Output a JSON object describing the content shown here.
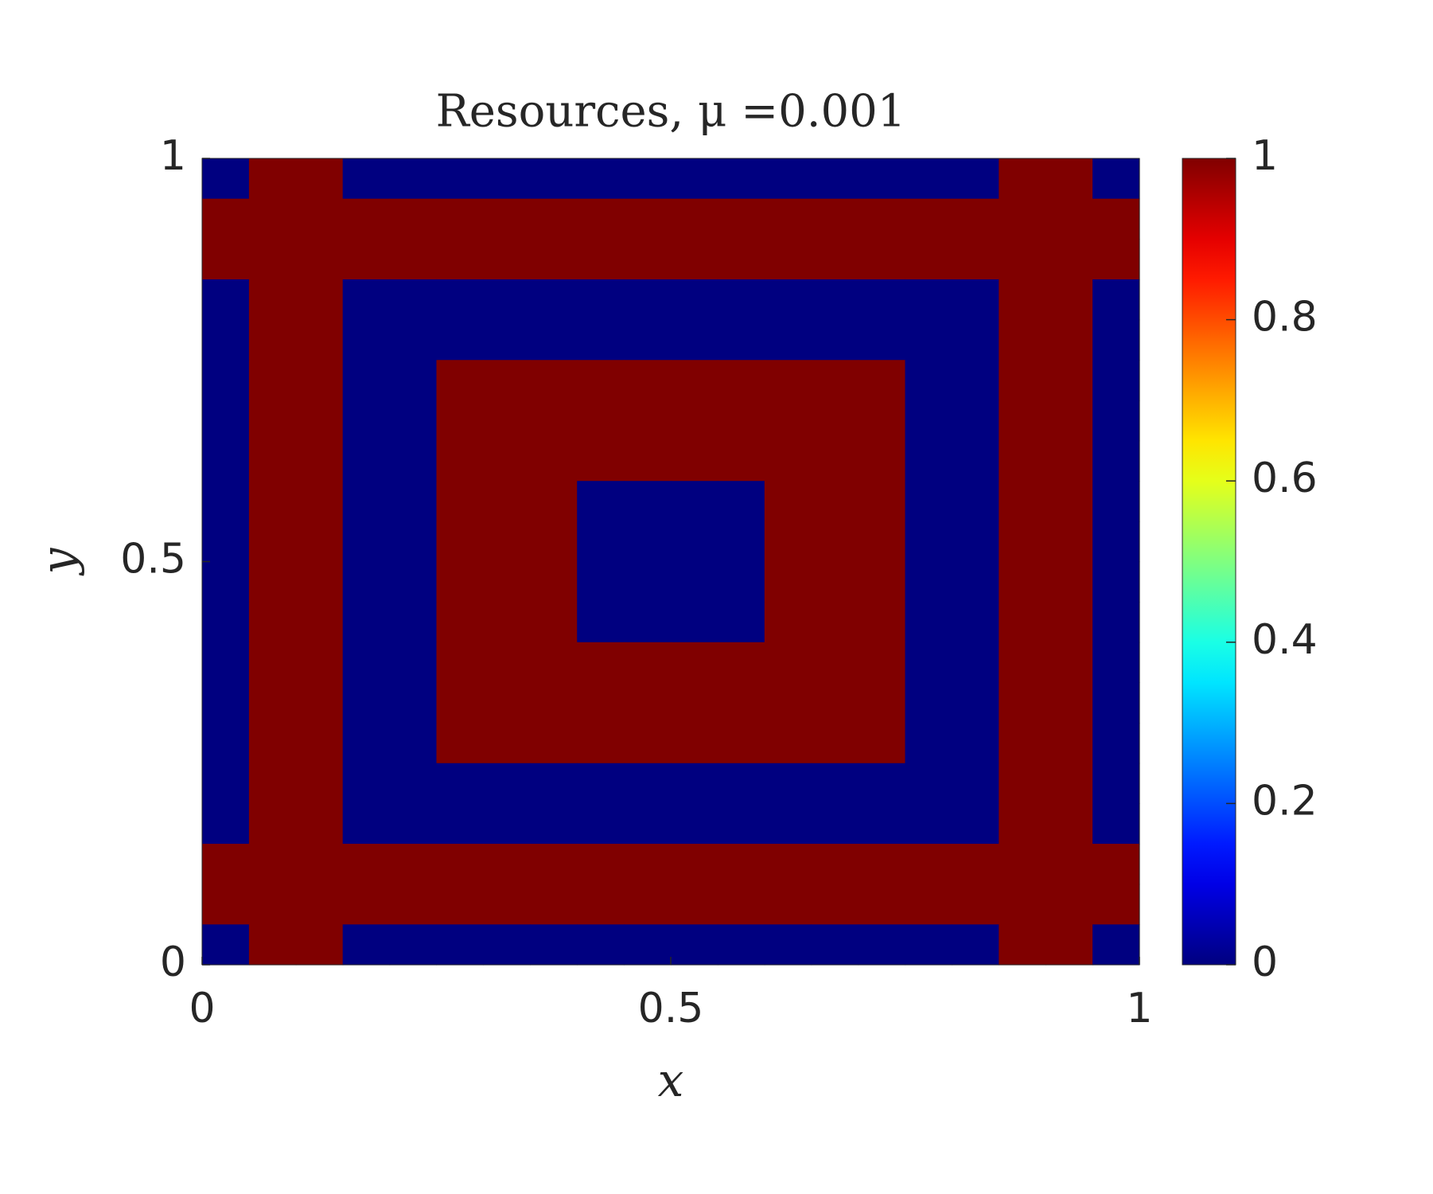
{
  "chart_data": {
    "type": "heatmap",
    "title": "Resources, μ =0.001",
    "x_label": "x",
    "y_label": "y",
    "xlim": [
      0,
      1
    ],
    "ylim": [
      0,
      1
    ],
    "xticks": [
      0,
      0.5,
      1
    ],
    "yticks": [
      0,
      0.5,
      1
    ],
    "colormap": "jet",
    "clim": [
      0,
      1
    ],
    "colorbar_ticks": [
      0,
      0.2,
      0.4,
      0.6,
      0.8,
      1
    ],
    "z": [
      [
        0,
        1,
        1,
        0,
        0,
        0,
        0,
        0,
        0,
        0,
        0,
        0,
        0,
        0,
        0,
        0,
        0,
        1,
        1,
        0
      ],
      [
        1,
        1,
        1,
        1,
        1,
        1,
        1,
        1,
        1,
        1,
        1,
        1,
        1,
        1,
        1,
        1,
        1,
        1,
        1,
        1
      ],
      [
        1,
        1,
        1,
        1,
        1,
        1,
        1,
        1,
        1,
        1,
        1,
        1,
        1,
        1,
        1,
        1,
        1,
        1,
        1,
        1
      ],
      [
        0,
        1,
        1,
        0,
        0,
        0,
        0,
        0,
        0,
        0,
        0,
        0,
        0,
        0,
        0,
        0,
        0,
        1,
        1,
        0
      ],
      [
        0,
        1,
        1,
        0,
        0,
        0,
        0,
        0,
        0,
        0,
        0,
        0,
        0,
        0,
        0,
        0,
        0,
        1,
        1,
        0
      ],
      [
        0,
        1,
        1,
        0,
        0,
        1,
        1,
        1,
        1,
        1,
        1,
        1,
        1,
        1,
        1,
        0,
        0,
        1,
        1,
        0
      ],
      [
        0,
        1,
        1,
        0,
        0,
        1,
        1,
        1,
        1,
        1,
        1,
        1,
        1,
        1,
        1,
        0,
        0,
        1,
        1,
        0
      ],
      [
        0,
        1,
        1,
        0,
        0,
        1,
        1,
        1,
        1,
        1,
        1,
        1,
        1,
        1,
        1,
        0,
        0,
        1,
        1,
        0
      ],
      [
        0,
        1,
        1,
        0,
        0,
        1,
        1,
        1,
        0,
        0,
        0,
        0,
        1,
        1,
        1,
        0,
        0,
        1,
        1,
        0
      ],
      [
        0,
        1,
        1,
        0,
        0,
        1,
        1,
        1,
        0,
        0,
        0,
        0,
        1,
        1,
        1,
        0,
        0,
        1,
        1,
        0
      ],
      [
        0,
        1,
        1,
        0,
        0,
        1,
        1,
        1,
        0,
        0,
        0,
        0,
        1,
        1,
        1,
        0,
        0,
        1,
        1,
        0
      ],
      [
        0,
        1,
        1,
        0,
        0,
        1,
        1,
        1,
        0,
        0,
        0,
        0,
        1,
        1,
        1,
        0,
        0,
        1,
        1,
        0
      ],
      [
        0,
        1,
        1,
        0,
        0,
        1,
        1,
        1,
        1,
        1,
        1,
        1,
        1,
        1,
        1,
        0,
        0,
        1,
        1,
        0
      ],
      [
        0,
        1,
        1,
        0,
        0,
        1,
        1,
        1,
        1,
        1,
        1,
        1,
        1,
        1,
        1,
        0,
        0,
        1,
        1,
        0
      ],
      [
        0,
        1,
        1,
        0,
        0,
        1,
        1,
        1,
        1,
        1,
        1,
        1,
        1,
        1,
        1,
        0,
        0,
        1,
        1,
        0
      ],
      [
        0,
        1,
        1,
        0,
        0,
        0,
        0,
        0,
        0,
        0,
        0,
        0,
        0,
        0,
        0,
        0,
        0,
        1,
        1,
        0
      ],
      [
        0,
        1,
        1,
        0,
        0,
        0,
        0,
        0,
        0,
        0,
        0,
        0,
        0,
        0,
        0,
        0,
        0,
        1,
        1,
        0
      ],
      [
        1,
        1,
        1,
        1,
        1,
        1,
        1,
        1,
        1,
        1,
        1,
        1,
        1,
        1,
        1,
        1,
        1,
        1,
        1,
        1
      ],
      [
        1,
        1,
        1,
        1,
        1,
        1,
        1,
        1,
        1,
        1,
        1,
        1,
        1,
        1,
        1,
        1,
        1,
        1,
        1,
        1
      ],
      [
        0,
        1,
        1,
        0,
        0,
        0,
        0,
        0,
        0,
        0,
        0,
        0,
        0,
        0,
        0,
        0,
        0,
        1,
        1,
        0
      ]
    ]
  }
}
